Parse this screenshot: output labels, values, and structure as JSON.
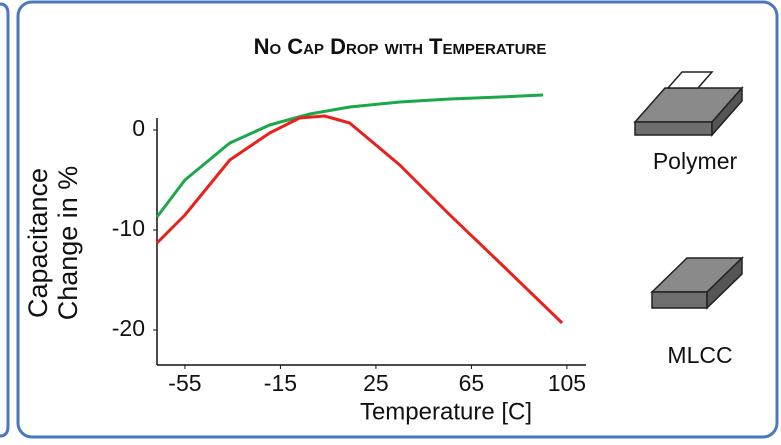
{
  "chart_data": {
    "type": "line",
    "title": "No Cap Drop with Temperature",
    "xlabel": "Temperature [C]",
    "ylabel": [
      "Capacitance",
      "Change in %"
    ],
    "annotations": [
      "Polymer",
      "MLCC"
    ],
    "xlim": [
      -66.7,
      113
    ],
    "ylim": [
      -23.5,
      1.2
    ],
    "xticks": [
      -55,
      -15,
      25,
      65,
      105
    ],
    "yticks": [
      0,
      -10,
      -20
    ],
    "series": [
      {
        "color": "#1aa84a",
        "x": [
          -66.7,
          -55,
          -36.2,
          -19.5,
          -2.7,
          14,
          35,
          56,
          77,
          95
        ],
        "values": [
          -8.7,
          -5,
          -1.3,
          0.5,
          1.6,
          2.3,
          2.8,
          3.1,
          3.3,
          3.5
        ]
      },
      {
        "color": "#e8211c",
        "x": [
          -66.7,
          -55,
          -36.2,
          -19.5,
          -7,
          3.5,
          14,
          35,
          56,
          77,
          103
        ],
        "values": [
          -11.3,
          -8.5,
          -3,
          -0.3,
          1.2,
          1.4,
          0.7,
          -3.5,
          -8.5,
          -13.3,
          -19.3
        ]
      }
    ]
  }
}
